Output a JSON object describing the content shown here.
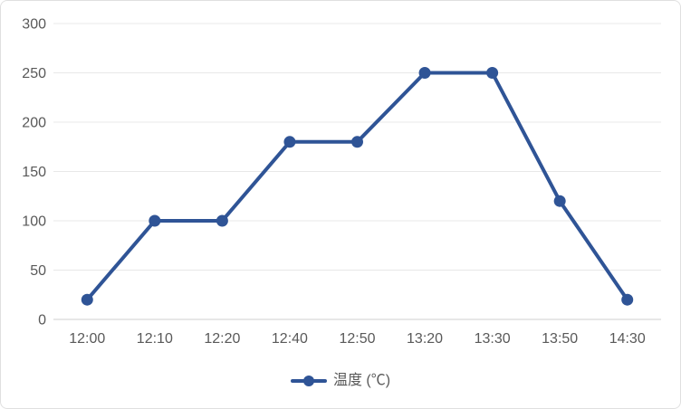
{
  "chart_data": {
    "type": "line",
    "title": "",
    "categories": [
      "12:00",
      "12:10",
      "12:20",
      "12:40",
      "12:50",
      "13:20",
      "13:30",
      "13:50",
      "14:30"
    ],
    "series": [
      {
        "name": "温度 (℃)",
        "values": [
          20,
          100,
          100,
          180,
          180,
          250,
          250,
          120,
          20
        ]
      }
    ],
    "xlabel": "",
    "ylabel": "",
    "ylim": [
      0,
      300
    ],
    "y_ticks": [
      0,
      50,
      100,
      150,
      200,
      250,
      300
    ],
    "grid": true,
    "legend_position": "bottom",
    "marker": "circle",
    "colors": {
      "series": "#2F5496",
      "gridline": "#E8E8E8",
      "axis_line": "#CFCFCF",
      "tick_label": "#595959",
      "border": "#E0E0E0",
      "background": "#FFFFFF"
    }
  }
}
